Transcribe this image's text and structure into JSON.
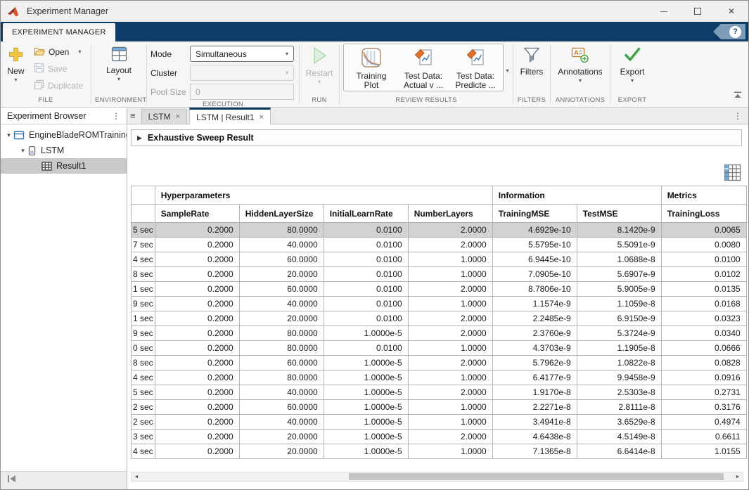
{
  "titlebar": {
    "title": "Experiment Manager"
  },
  "ribbon": {
    "tab_label": "EXPERIMENT MANAGER",
    "file": {
      "new": "New",
      "open": "Open",
      "save": "Save",
      "duplicate": "Duplicate",
      "section": "FILE"
    },
    "environment": {
      "layout": "Layout",
      "section": "ENVIRONMENT"
    },
    "execution": {
      "mode_label": "Mode",
      "mode_value": "Simultaneous",
      "cluster_label": "Cluster",
      "cluster_value": "",
      "pool_label": "Pool Size",
      "pool_value": "0",
      "section": "EXECUTION"
    },
    "run": {
      "restart": "Restart",
      "section": "RUN"
    },
    "review": {
      "training_plot": "Training Plot",
      "test_actual": "Test Data: Actual v ...",
      "test_predicted": "Test Data: Predicte ...",
      "section": "REVIEW RESULTS"
    },
    "filters": {
      "button": "Filters",
      "section": "FILTERS"
    },
    "annotations": {
      "button": "Annotations",
      "section": "ANNOTATIONS"
    },
    "export": {
      "button": "Export",
      "section": "EXPORT"
    }
  },
  "sidebar": {
    "title": "Experiment Browser",
    "items": [
      {
        "label": "EngineBladeROMTraining",
        "icon": "project-icon",
        "expanded": true
      },
      {
        "label": "LSTM",
        "icon": "experiment-icon",
        "expanded": true
      },
      {
        "label": "Result1",
        "icon": "result-table-icon",
        "selected": true
      }
    ]
  },
  "tabs": [
    {
      "label": "LSTM"
    },
    {
      "label": "LSTM | Result1",
      "active": true
    }
  ],
  "document": {
    "section_title": "Exhaustive Sweep Result",
    "table": {
      "groups": [
        {
          "label": "",
          "span": 1
        },
        {
          "label": "Hyperparameters",
          "span": 4
        },
        {
          "label": "Information",
          "span": 2
        },
        {
          "label": "Metrics",
          "span": 1
        }
      ],
      "columns": [
        "",
        "SampleRate",
        "HiddenLayerSize",
        "InitialLearnRate",
        "NumberLayers",
        "TrainingMSE",
        "TestMSE",
        "TrainingLoss"
      ],
      "selected_row": 0,
      "rows": [
        [
          "5 sec",
          "0.2000",
          "80.0000",
          "0.0100",
          "2.0000",
          "4.6929e-10",
          "8.1420e-9",
          "0.0065"
        ],
        [
          "7 sec",
          "0.2000",
          "40.0000",
          "0.0100",
          "2.0000",
          "5.5795e-10",
          "5.5091e-9",
          "0.0080"
        ],
        [
          "4 sec",
          "0.2000",
          "60.0000",
          "0.0100",
          "1.0000",
          "6.9445e-10",
          "1.0688e-8",
          "0.0100"
        ],
        [
          "8 sec",
          "0.2000",
          "20.0000",
          "0.0100",
          "1.0000",
          "7.0905e-10",
          "5.6907e-9",
          "0.0102"
        ],
        [
          "1 sec",
          "0.2000",
          "60.0000",
          "0.0100",
          "2.0000",
          "8.7806e-10",
          "5.9005e-9",
          "0.0135"
        ],
        [
          "9 sec",
          "0.2000",
          "40.0000",
          "0.0100",
          "1.0000",
          "1.1574e-9",
          "1.1059e-8",
          "0.0168"
        ],
        [
          "1 sec",
          "0.2000",
          "20.0000",
          "0.0100",
          "2.0000",
          "2.2485e-9",
          "6.9150e-9",
          "0.0323"
        ],
        [
          "9 sec",
          "0.2000",
          "80.0000",
          "1.0000e-5",
          "2.0000",
          "2.3760e-9",
          "5.3724e-9",
          "0.0340"
        ],
        [
          "0 sec",
          "0.2000",
          "80.0000",
          "0.0100",
          "1.0000",
          "4.3703e-9",
          "1.1905e-8",
          "0.0666"
        ],
        [
          "8 sec",
          "0.2000",
          "60.0000",
          "1.0000e-5",
          "2.0000",
          "5.7962e-9",
          "1.0822e-8",
          "0.0828"
        ],
        [
          "4 sec",
          "0.2000",
          "80.0000",
          "1.0000e-5",
          "1.0000",
          "6.4177e-9",
          "9.9458e-9",
          "0.0916"
        ],
        [
          "5 sec",
          "0.2000",
          "40.0000",
          "1.0000e-5",
          "2.0000",
          "1.9170e-8",
          "2.5303e-8",
          "0.2731"
        ],
        [
          "2 sec",
          "0.2000",
          "60.0000",
          "1.0000e-5",
          "1.0000",
          "2.2271e-8",
          "2.8111e-8",
          "0.3176"
        ],
        [
          "2 sec",
          "0.2000",
          "40.0000",
          "1.0000e-5",
          "1.0000",
          "3.4941e-8",
          "3.6529e-8",
          "0.4974"
        ],
        [
          "3 sec",
          "0.2000",
          "20.0000",
          "1.0000e-5",
          "2.0000",
          "4.6438e-8",
          "4.5149e-8",
          "0.6611"
        ],
        [
          "4 sec",
          "0.2000",
          "20.0000",
          "1.0000e-5",
          "1.0000",
          "7.1365e-8",
          "6.6414e-8",
          "1.0155"
        ]
      ]
    }
  },
  "icons": {
    "minimize": "—",
    "close": "✕",
    "help": "?",
    "menu_dots": "⋮",
    "tab_list": "≡",
    "caret": "▾",
    "section_arrow": "▶",
    "tree_arrow": "▾",
    "tab_close": "×",
    "scroll_left": "◄",
    "scroll_right": "►"
  },
  "colors": {
    "ribbon_navy": "#0d3d66",
    "selected_row_gray": "#d2d2d2",
    "export_green": "#3fa33f",
    "new_yellow": "#f3c73f",
    "pin_orange": "#e2702a"
  }
}
